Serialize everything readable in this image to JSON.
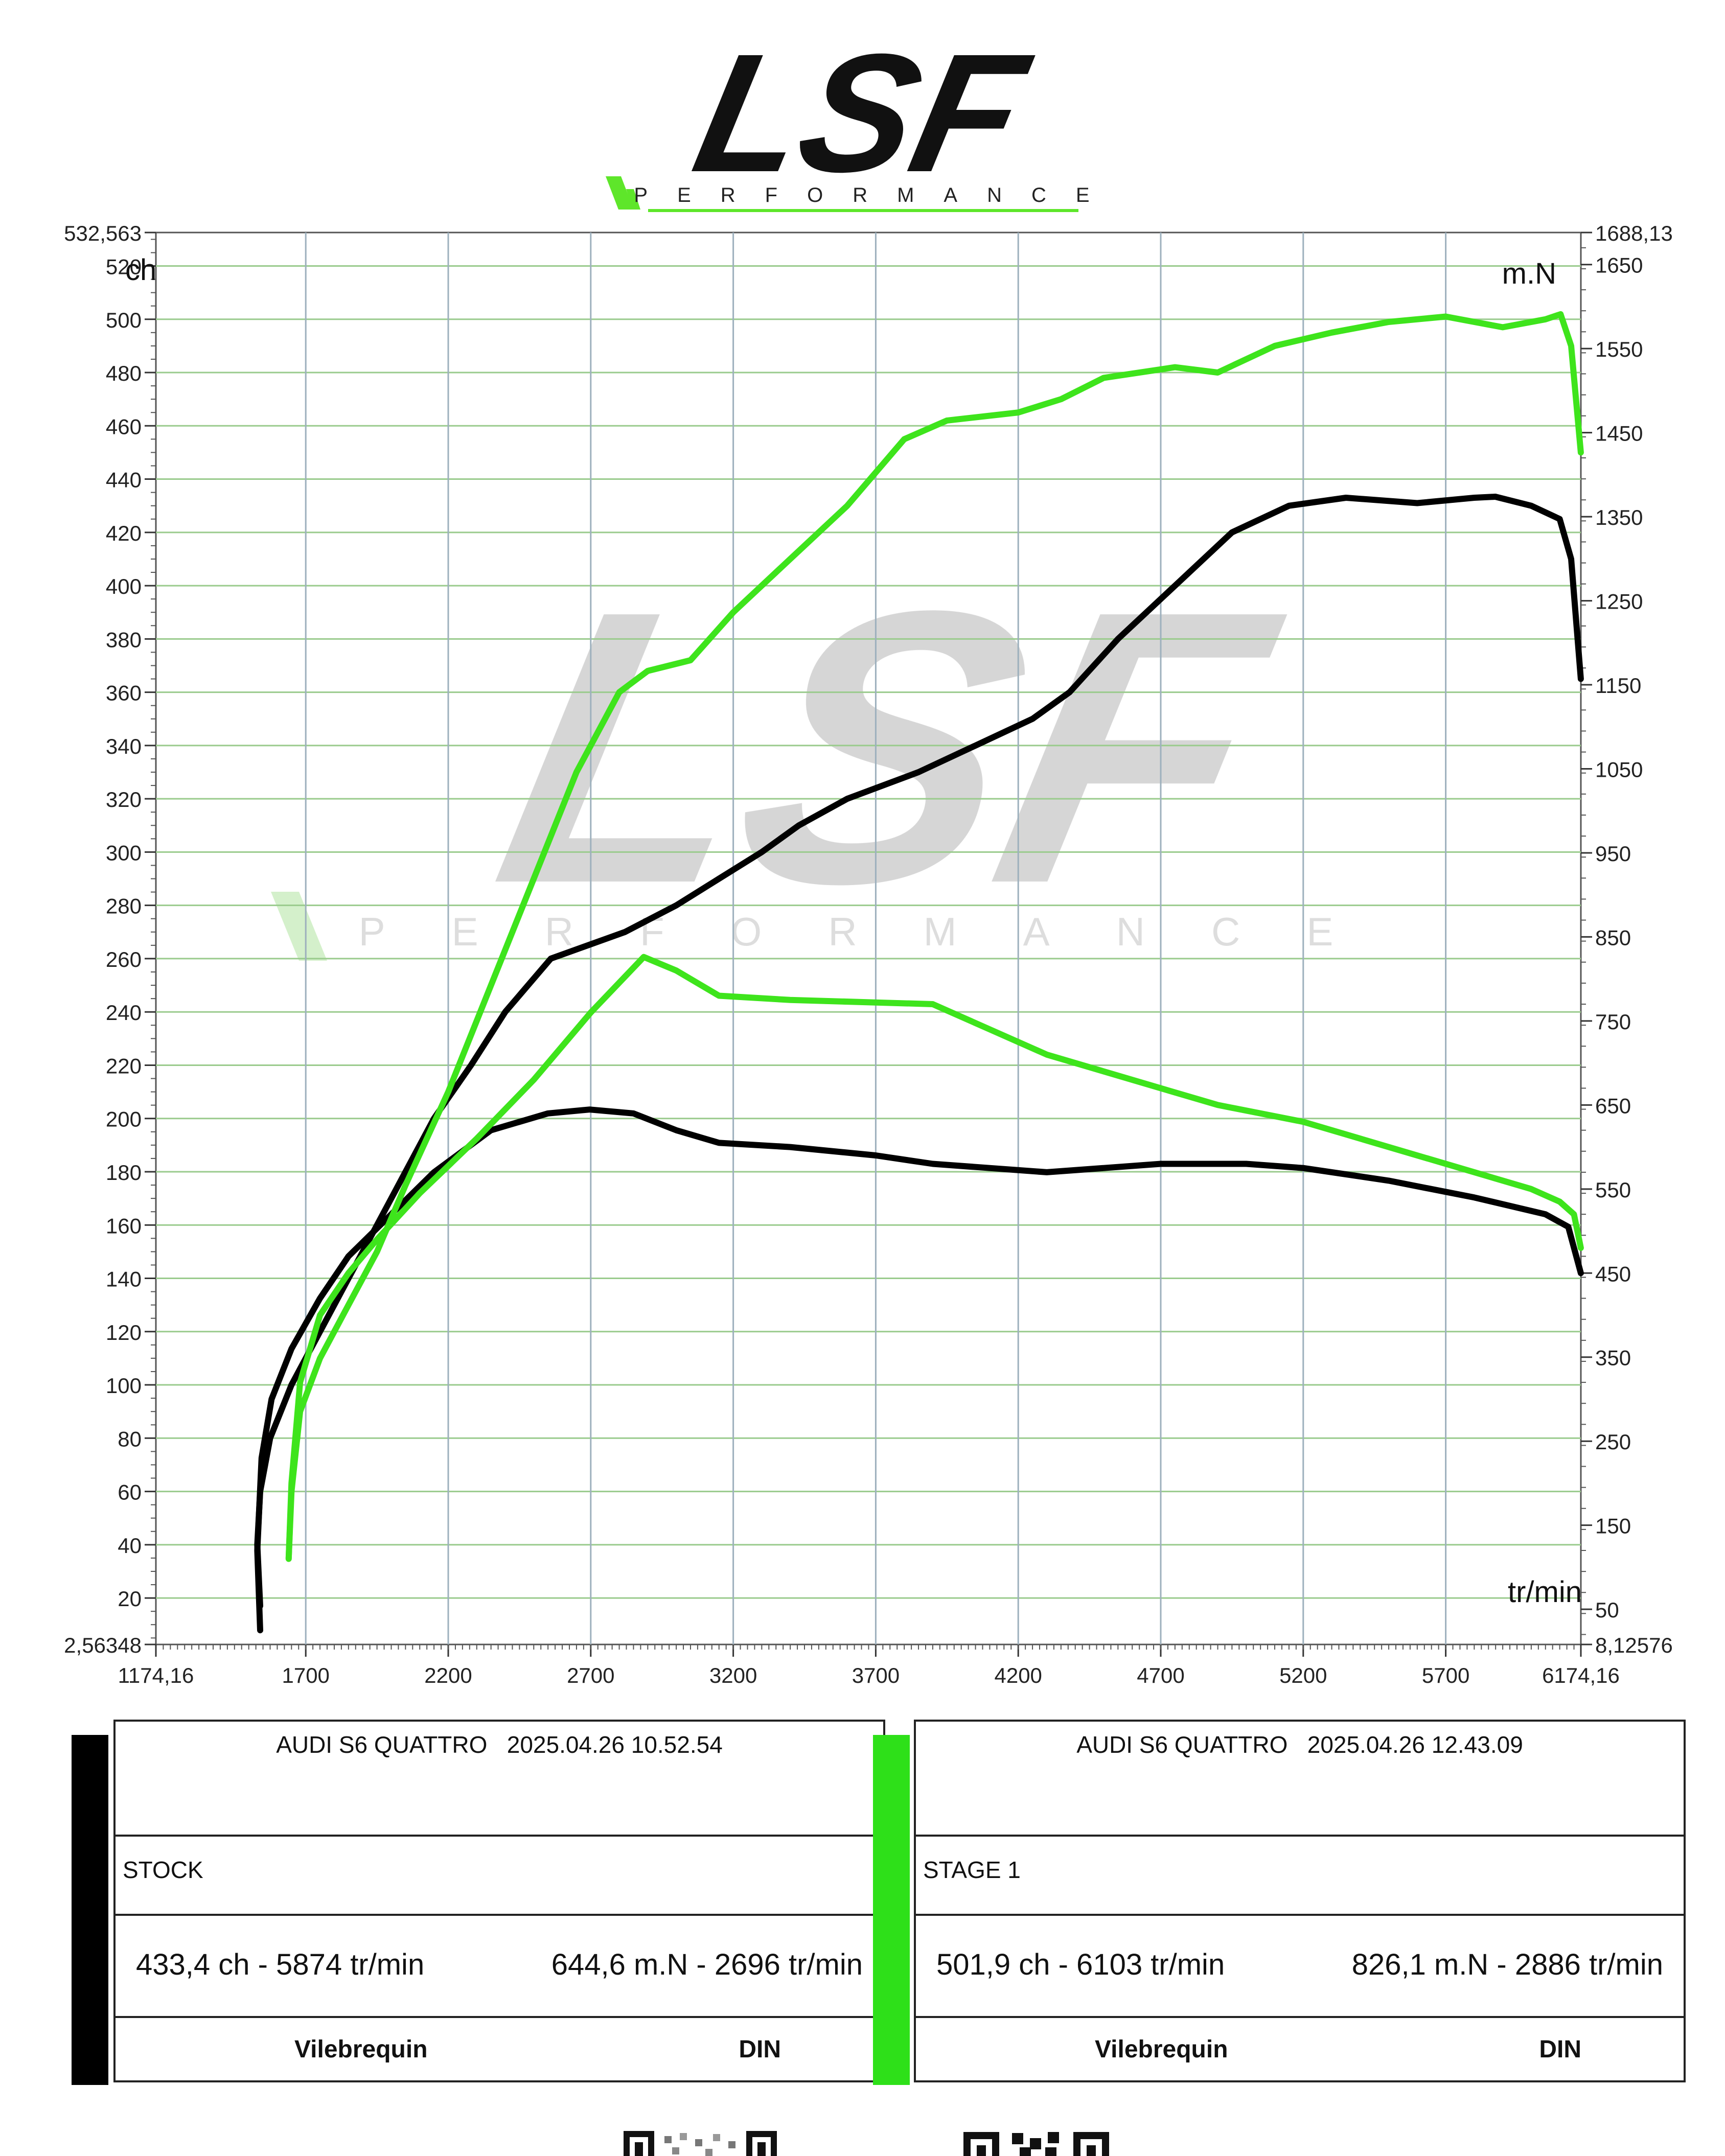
{
  "logo": {
    "text": "LSF",
    "subtitle": "PERFORMANCE",
    "text_color": "#111111",
    "accent_color": "#5ee62a"
  },
  "watermark": {
    "text": "LSF",
    "subtitle": "PERFORMANCE"
  },
  "chart_data": {
    "type": "line",
    "x_axis": {
      "label": "tr/min",
      "range": [
        1174.16,
        6174.16
      ],
      "ticks": [
        "1174,16",
        "1700",
        "2200",
        "2700",
        "3200",
        "3700",
        "4200",
        "4700",
        "5200",
        "5700",
        "6174,16"
      ]
    },
    "y_left": {
      "label": "ch",
      "range": [
        2.56348,
        532.563
      ],
      "ticks": [
        "2,56348",
        "20",
        "40",
        "60",
        "80",
        "100",
        "120",
        "140",
        "160",
        "180",
        "200",
        "220",
        "240",
        "260",
        "280",
        "300",
        "320",
        "340",
        "360",
        "380",
        "400",
        "420",
        "440",
        "460",
        "480",
        "500",
        "520",
        "532,563"
      ]
    },
    "y_right": {
      "label": "m.N",
      "range": [
        8.12576,
        1688.13
      ],
      "ticks": [
        "8,12576",
        "50",
        "150",
        "250",
        "350",
        "450",
        "550",
        "650",
        "750",
        "850",
        "950",
        "1050",
        "1150",
        "1250",
        "1350",
        "1450",
        "1550",
        "1650",
        "1688,13"
      ]
    },
    "grid": true,
    "series": [
      {
        "name": "STOCK",
        "quantity": "power",
        "axis": "left",
        "color": "#000000",
        "points": [
          [
            1540,
            17
          ],
          [
            1530,
            40
          ],
          [
            1540,
            60
          ],
          [
            1575,
            80
          ],
          [
            1650,
            100
          ],
          [
            1750,
            120
          ],
          [
            1850,
            140
          ],
          [
            1950,
            160
          ],
          [
            2050,
            180
          ],
          [
            2150,
            200
          ],
          [
            2280,
            220
          ],
          [
            2400,
            240
          ],
          [
            2560,
            260
          ],
          [
            2820,
            270
          ],
          [
            3000,
            280
          ],
          [
            3150,
            290
          ],
          [
            3300,
            300
          ],
          [
            3430,
            310
          ],
          [
            3600,
            320
          ],
          [
            3850,
            330
          ],
          [
            4050,
            340
          ],
          [
            4250,
            350
          ],
          [
            4380,
            360
          ],
          [
            4550,
            380
          ],
          [
            4750,
            400
          ],
          [
            4950,
            420
          ],
          [
            5150,
            430
          ],
          [
            5350,
            433
          ],
          [
            5600,
            431
          ],
          [
            5800,
            433
          ],
          [
            5874,
            433.4
          ],
          [
            6000,
            430
          ],
          [
            6100,
            425
          ],
          [
            6140,
            410
          ],
          [
            6174,
            365
          ]
        ]
      },
      {
        "name": "STOCK",
        "quantity": "torque",
        "axis": "right",
        "color": "#000000",
        "points": [
          [
            1540,
            25
          ],
          [
            1530,
            120
          ],
          [
            1545,
            230
          ],
          [
            1580,
            300
          ],
          [
            1650,
            360
          ],
          [
            1750,
            420
          ],
          [
            1850,
            470
          ],
          [
            2000,
            520
          ],
          [
            2150,
            570
          ],
          [
            2350,
            620
          ],
          [
            2550,
            640
          ],
          [
            2696,
            644.6
          ],
          [
            2850,
            640
          ],
          [
            3000,
            620
          ],
          [
            3150,
            605
          ],
          [
            3400,
            600
          ],
          [
            3700,
            590
          ],
          [
            3900,
            580
          ],
          [
            4100,
            575
          ],
          [
            4300,
            570
          ],
          [
            4500,
            575
          ],
          [
            4700,
            580
          ],
          [
            5000,
            580
          ],
          [
            5200,
            575
          ],
          [
            5500,
            560
          ],
          [
            5800,
            540
          ],
          [
            6050,
            520
          ],
          [
            6130,
            505
          ],
          [
            6174,
            450
          ]
        ]
      },
      {
        "name": "STAGE 1",
        "quantity": "power",
        "axis": "left",
        "color": "#3ee41c",
        "points": [
          [
            1640,
            35
          ],
          [
            1650,
            60
          ],
          [
            1680,
            90
          ],
          [
            1750,
            110
          ],
          [
            1850,
            130
          ],
          [
            1950,
            150
          ],
          [
            2050,
            175
          ],
          [
            2200,
            210
          ],
          [
            2350,
            250
          ],
          [
            2500,
            290
          ],
          [
            2650,
            330
          ],
          [
            2800,
            360
          ],
          [
            2900,
            368
          ],
          [
            3050,
            372
          ],
          [
            3200,
            390
          ],
          [
            3400,
            410
          ],
          [
            3600,
            430
          ],
          [
            3800,
            455
          ],
          [
            3950,
            462
          ],
          [
            4200,
            465
          ],
          [
            4350,
            470
          ],
          [
            4500,
            478
          ],
          [
            4750,
            482
          ],
          [
            4900,
            480
          ],
          [
            5100,
            490
          ],
          [
            5300,
            495
          ],
          [
            5500,
            499
          ],
          [
            5700,
            501
          ],
          [
            5900,
            497
          ],
          [
            6050,
            500
          ],
          [
            6103,
            501.9
          ],
          [
            6140,
            490
          ],
          [
            6174,
            450
          ]
        ]
      },
      {
        "name": "STAGE 1",
        "quantity": "torque",
        "axis": "right",
        "color": "#3ee41c",
        "points": [
          [
            1640,
            110
          ],
          [
            1650,
            200
          ],
          [
            1680,
            320
          ],
          [
            1750,
            400
          ],
          [
            1850,
            450
          ],
          [
            1950,
            490
          ],
          [
            2100,
            545
          ],
          [
            2300,
            610
          ],
          [
            2500,
            680
          ],
          [
            2700,
            760
          ],
          [
            2886,
            826.1
          ],
          [
            3000,
            810
          ],
          [
            3150,
            780
          ],
          [
            3400,
            775
          ],
          [
            3700,
            772
          ],
          [
            3900,
            770
          ],
          [
            4100,
            740
          ],
          [
            4300,
            710
          ],
          [
            4500,
            690
          ],
          [
            4700,
            670
          ],
          [
            4900,
            650
          ],
          [
            5200,
            630
          ],
          [
            5500,
            600
          ],
          [
            5800,
            570
          ],
          [
            6000,
            550
          ],
          [
            6100,
            535
          ],
          [
            6150,
            520
          ],
          [
            6174,
            480
          ]
        ]
      }
    ]
  },
  "cards": [
    {
      "vehicle": "AUDI S6 QUATTRO",
      "timestamp": "2025.04.26 10.52.54",
      "config": "STOCK",
      "power_text": "433,4 ch - 5874 tr/min",
      "torque_text": "644,6 m.N - 2696 tr/min",
      "footer_left": "Vilebrequin",
      "footer_right": "DIN",
      "color": "#000000"
    },
    {
      "vehicle": "AUDI S6 QUATTRO",
      "timestamp": "2025.04.26 12.43.09",
      "config": "STAGE 1",
      "power_text": "501,9 ch - 6103 tr/min",
      "torque_text": "826,1 m.N - 2886 tr/min",
      "footer_left": "Vilebrequin",
      "footer_right": "DIN",
      "color": "#2ee019"
    }
  ]
}
